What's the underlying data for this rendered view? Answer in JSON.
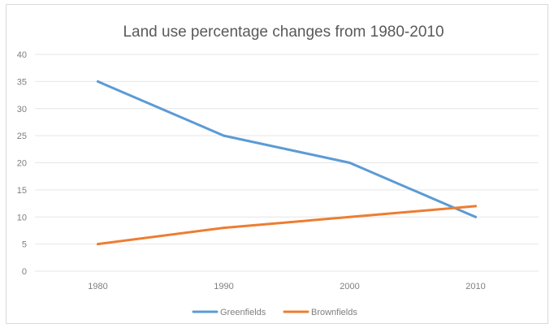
{
  "chart_data": {
    "type": "line",
    "title": "Land use percentage changes from 1980-2010",
    "xlabel": "",
    "ylabel": "",
    "categories": [
      "1980",
      "1990",
      "2000",
      "2010"
    ],
    "ylim": [
      0,
      40
    ],
    "yticks": [
      0,
      5,
      10,
      15,
      20,
      25,
      30,
      35,
      40
    ],
    "grid": true,
    "legend": "bottom",
    "series": [
      {
        "name": "Greenfields",
        "values": [
          35,
          25,
          20,
          10
        ],
        "color": "#5b9bd5"
      },
      {
        "name": "Brownfields",
        "values": [
          5,
          8,
          10,
          12
        ],
        "color": "#ed7d31"
      }
    ]
  }
}
